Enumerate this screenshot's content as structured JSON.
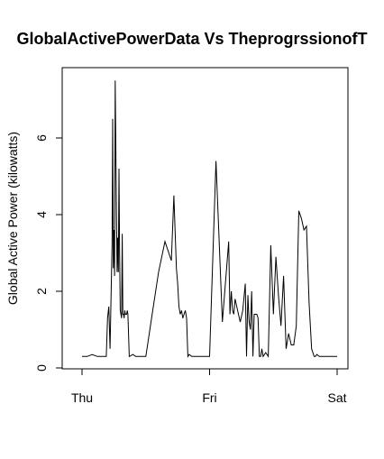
{
  "chart_data": {
    "type": "line",
    "title": "GlobalActivePowerData Vs TheprogrssionofT",
    "xlabel": "",
    "ylabel": "Global Active Power (kilowatts)",
    "x_ticks": [
      "Thu",
      "Fri",
      "Sat"
    ],
    "x_range_days": [
      0,
      2
    ],
    "y_ticks": [
      "0",
      "2",
      "4",
      "6"
    ],
    "ylim": [
      0,
      7.6
    ],
    "grid": false,
    "series": [
      {
        "x_days": [
          0.0,
          0.04,
          0.08,
          0.12,
          0.16,
          0.19,
          0.2,
          0.21,
          0.22,
          0.235,
          0.24,
          0.245,
          0.25,
          0.255,
          0.26,
          0.27,
          0.275,
          0.28,
          0.285,
          0.29,
          0.295,
          0.3,
          0.31,
          0.315,
          0.32,
          0.325,
          0.33,
          0.335,
          0.34,
          0.35,
          0.355,
          0.36,
          0.37,
          0.4,
          0.42,
          0.43,
          0.44,
          0.46,
          0.5,
          0.55,
          0.6,
          0.65,
          0.7,
          0.72,
          0.74,
          0.75,
          0.76,
          0.77,
          0.78,
          0.79,
          0.8,
          0.81,
          0.82,
          0.83,
          0.84,
          0.86,
          0.88,
          0.9,
          0.92,
          0.95,
          1.0,
          1.05,
          1.1,
          1.15,
          1.16,
          1.17,
          1.18,
          1.19,
          1.2,
          1.22,
          1.24,
          1.26,
          1.28,
          1.29,
          1.3,
          1.31,
          1.32,
          1.33,
          1.34,
          1.35,
          1.37,
          1.38,
          1.39,
          1.4,
          1.41,
          1.42,
          1.44,
          1.46,
          1.48,
          1.5,
          1.52,
          1.54,
          1.56,
          1.58,
          1.6,
          1.62,
          1.64,
          1.66,
          1.68,
          1.7,
          1.72,
          1.74,
          1.76,
          1.78,
          1.8,
          1.82,
          1.83,
          1.84,
          1.86,
          1.87,
          1.88,
          1.9,
          1.92,
          1.94,
          1.96,
          1.98,
          2.0
        ],
        "values": [
          0.3,
          0.3,
          0.35,
          0.3,
          0.3,
          0.3,
          1.3,
          1.6,
          0.5,
          3.2,
          6.5,
          2.6,
          3.6,
          2.4,
          7.5,
          4.1,
          2.5,
          3.4,
          2.5,
          5.2,
          3.0,
          1.5,
          1.3,
          3.5,
          1.4,
          1.4,
          1.3,
          1.5,
          1.4,
          1.4,
          1.5,
          1.4,
          0.3,
          0.35,
          0.3,
          0.3,
          0.3,
          0.3,
          0.3,
          1.4,
          2.5,
          3.3,
          2.8,
          4.5,
          2.6,
          2.2,
          1.6,
          1.4,
          1.5,
          1.3,
          1.4,
          1.5,
          1.3,
          0.3,
          0.35,
          0.3,
          0.3,
          0.3,
          0.3,
          0.3,
          0.3,
          5.4,
          1.2,
          3.3,
          1.4,
          2.0,
          1.5,
          1.4,
          1.8,
          1.5,
          1.2,
          1.5,
          2.2,
          0.3,
          1.9,
          1.2,
          1.0,
          2.0,
          0.3,
          1.4,
          1.4,
          1.3,
          0.3,
          0.3,
          0.5,
          0.3,
          0.4,
          0.3,
          3.2,
          1.4,
          2.9,
          1.9,
          1.1,
          2.4,
          0.5,
          0.9,
          0.6,
          0.6,
          1.1,
          4.1,
          3.9,
          3.6,
          3.7,
          1.7,
          0.5,
          0.3,
          0.3,
          0.35,
          0.3,
          0.3,
          0.3,
          0.3,
          0.3,
          0.3,
          0.3,
          0.3,
          0.3
        ]
      }
    ]
  }
}
